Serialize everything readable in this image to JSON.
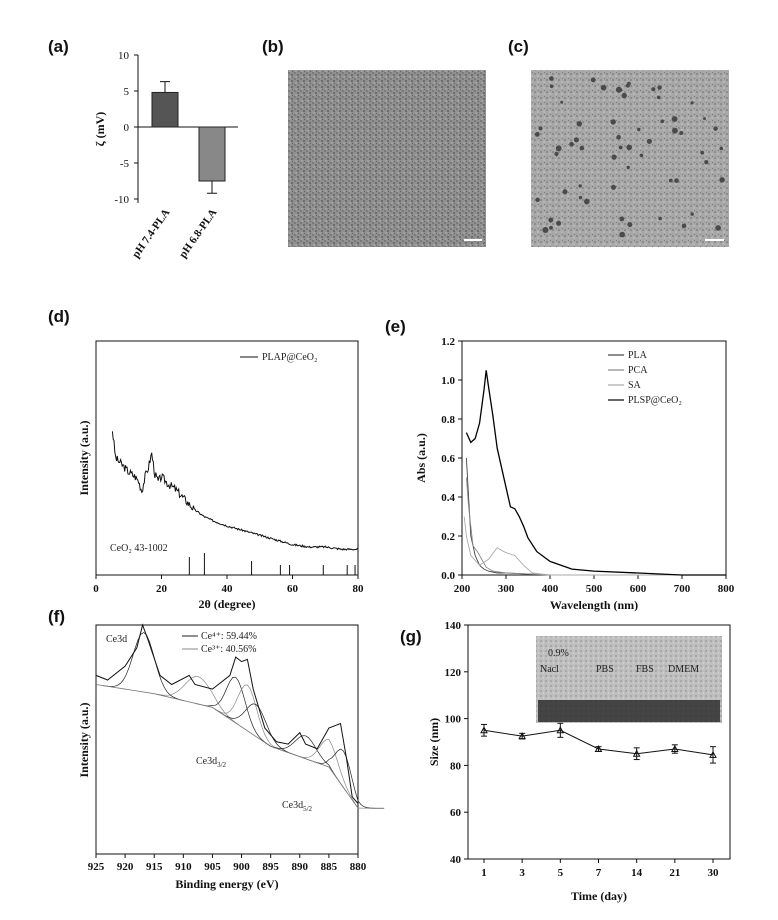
{
  "panels": {
    "a": "(a)",
    "b": "(b)",
    "c": "(c)",
    "d": "(d)",
    "e": "(e)",
    "f": "(f)",
    "g": "(g)"
  },
  "chart_data": [
    {
      "id": "a",
      "type": "bar",
      "categories": [
        "pH 7.4-PLA",
        "pH 6.8-PLA"
      ],
      "values": [
        4.8,
        -7.5
      ],
      "errors": [
        1.5,
        1.7
      ],
      "ylabel": "ζ (mV)",
      "ylim": [
        -10,
        10
      ],
      "yticks": [
        "10",
        "5",
        "0",
        "-5",
        "-10"
      ],
      "bar_colors": [
        "#555555",
        "#888888"
      ]
    },
    {
      "id": "d",
      "type": "line",
      "xlabel": "2θ (degree)",
      "ylabel": "Intensity (a.u.)",
      "xlim": [
        0,
        80
      ],
      "xticks": [
        "0",
        "20",
        "40",
        "60",
        "80"
      ],
      "legend": "PLAP@CeO₂",
      "legend_position": "top-right",
      "reference_label": "CeO₂ 43-1002",
      "reference_peaks": [
        28.5,
        33.1,
        47.5,
        56.3,
        59.1,
        69.4,
        76.7,
        79.1
      ],
      "pattern": [
        [
          5,
          0.62
        ],
        [
          6,
          0.5
        ],
        [
          8,
          0.47
        ],
        [
          10,
          0.44
        ],
        [
          12,
          0.42
        ],
        [
          13,
          0.4
        ],
        [
          14,
          0.36
        ],
        [
          15,
          0.42
        ],
        [
          16,
          0.46
        ],
        [
          17,
          0.52
        ],
        [
          18,
          0.43
        ],
        [
          19,
          0.4
        ],
        [
          20,
          0.42
        ],
        [
          22,
          0.39
        ],
        [
          24,
          0.37
        ],
        [
          26,
          0.34
        ],
        [
          28,
          0.31
        ],
        [
          30,
          0.28
        ],
        [
          33,
          0.25
        ],
        [
          36,
          0.23
        ],
        [
          40,
          0.21
        ],
        [
          45,
          0.19
        ],
        [
          50,
          0.17
        ],
        [
          55,
          0.15
        ],
        [
          60,
          0.13
        ],
        [
          65,
          0.12
        ],
        [
          70,
          0.12
        ],
        [
          75,
          0.11
        ],
        [
          80,
          0.11
        ]
      ]
    },
    {
      "id": "e",
      "type": "line",
      "xlabel": "Wavelength (nm)",
      "ylabel": "Abs (a.u.)",
      "xlim": [
        200,
        800
      ],
      "ylim": [
        0,
        1.2
      ],
      "xticks": [
        "200",
        "300",
        "400",
        "500",
        "600",
        "700",
        "800"
      ],
      "yticks": [
        "0.0",
        "0.2",
        "0.4",
        "0.6",
        "0.8",
        "1.0",
        "1.2"
      ],
      "legend_position": "top-right",
      "series": [
        {
          "name": "PLA",
          "color": "#444444",
          "x": [
            210,
            215,
            220,
            230,
            240,
            250,
            260,
            280,
            300,
            400,
            800
          ],
          "y": [
            0.6,
            0.4,
            0.2,
            0.1,
            0.05,
            0.03,
            0.02,
            0.01,
            0.01,
            0.0,
            0.0
          ]
        },
        {
          "name": "PCA",
          "color": "#888888",
          "x": [
            210,
            215,
            225,
            235,
            245,
            255,
            270,
            300,
            400,
            800
          ],
          "y": [
            0.5,
            0.35,
            0.15,
            0.12,
            0.08,
            0.04,
            0.02,
            0.01,
            0.0,
            0.0
          ]
        },
        {
          "name": "SA",
          "color": "#aaaaaa",
          "x": [
            205,
            210,
            220,
            240,
            260,
            280,
            295,
            305,
            320,
            340,
            360,
            400,
            800
          ],
          "y": [
            0.3,
            0.2,
            0.1,
            0.05,
            0.08,
            0.14,
            0.12,
            0.11,
            0.1,
            0.05,
            0.01,
            0.0,
            0.0
          ]
        },
        {
          "name": "PLSP@CeO₂",
          "color": "#000000",
          "x": [
            210,
            220,
            230,
            240,
            250,
            255,
            260,
            270,
            280,
            290,
            300,
            310,
            320,
            330,
            340,
            350,
            370,
            400,
            450,
            500,
            600,
            700,
            800
          ],
          "y": [
            0.73,
            0.68,
            0.7,
            0.78,
            0.95,
            1.05,
            0.97,
            0.82,
            0.65,
            0.55,
            0.45,
            0.35,
            0.34,
            0.3,
            0.25,
            0.19,
            0.12,
            0.07,
            0.03,
            0.02,
            0.01,
            0.0,
            0.0
          ]
        }
      ]
    },
    {
      "id": "f",
      "type": "line",
      "xlabel": "Binding energy (eV)",
      "ylabel": "Intensity (a.u.)",
      "xlim": [
        925,
        880
      ],
      "xticks": [
        "925",
        "920",
        "915",
        "910",
        "905",
        "900",
        "895",
        "890",
        "885",
        "880"
      ],
      "label_ce3d": "Ce3d",
      "label_ce3d32": "Ce3d",
      "sub_32": "3/2",
      "label_ce3d52": "Ce3d",
      "sub_52": "5/2",
      "legend": [
        {
          "name": "Ce⁴⁺: 59.44%",
          "color": "#222222"
        },
        {
          "name": "Ce³⁺: 40.56%",
          "color": "#888888"
        }
      ],
      "spectrum": [
        [
          925,
          0.78
        ],
        [
          923,
          0.76
        ],
        [
          920,
          0.82
        ],
        [
          918,
          0.9
        ],
        [
          917,
          1.0
        ],
        [
          916,
          0.93
        ],
        [
          914,
          0.78
        ],
        [
          912,
          0.74
        ],
        [
          909,
          0.78
        ],
        [
          908,
          0.74
        ],
        [
          905,
          0.72
        ],
        [
          902,
          0.78
        ],
        [
          901,
          0.86
        ],
        [
          900,
          0.84
        ],
        [
          899,
          0.85
        ],
        [
          898,
          0.72
        ],
        [
          896,
          0.55
        ],
        [
          894,
          0.49
        ],
        [
          892,
          0.48
        ],
        [
          890,
          0.53
        ],
        [
          889,
          0.48
        ],
        [
          887,
          0.46
        ],
        [
          885,
          0.55
        ],
        [
          883,
          0.57
        ],
        [
          882,
          0.42
        ],
        [
          881,
          0.25
        ],
        [
          880,
          0.22
        ]
      ]
    },
    {
      "id": "g",
      "type": "line",
      "xlabel": "Time (day)",
      "ylabel": "Size (nm)",
      "ylim": [
        40,
        140
      ],
      "yticks": [
        "40",
        "60",
        "80",
        "100",
        "120",
        "140"
      ],
      "categories": [
        "1",
        "3",
        "5",
        "7",
        "14",
        "21",
        "30"
      ],
      "values": [
        95,
        92.5,
        95,
        87,
        85,
        87,
        84.5
      ],
      "errors": [
        2.5,
        1.2,
        3.0,
        1.0,
        2.5,
        1.8,
        3.5
      ],
      "inset_labels": [
        "0.9%",
        "Nacl",
        "PBS",
        "FBS",
        "DMEM"
      ]
    }
  ]
}
